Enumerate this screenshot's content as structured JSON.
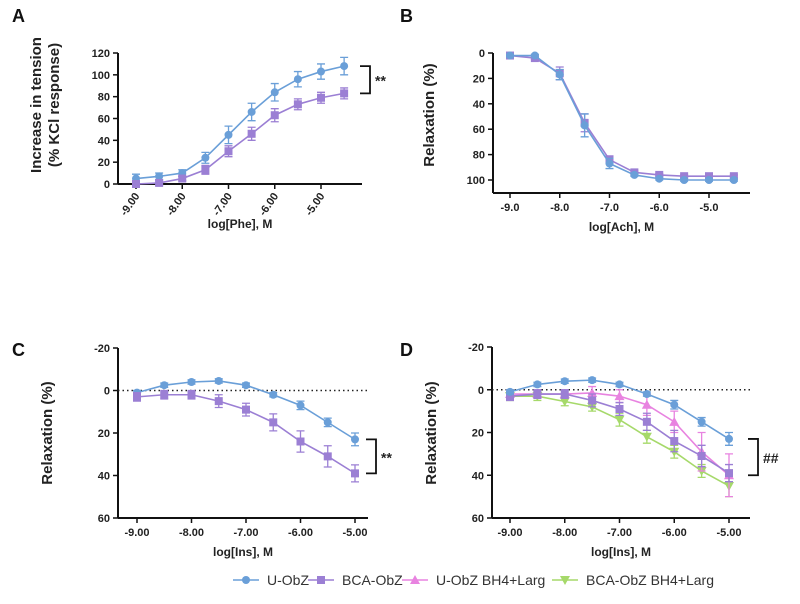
{
  "colors": {
    "U-ObZ": "#6a9fd8",
    "BCA-ObZ": "#9b7fd4",
    "U-ObZ  BH4+Larg": "#e883e0",
    "BCA-ObZ  BH4+Larg": "#a6d96a"
  },
  "legend": [
    {
      "name": "U-ObZ",
      "marker": "circle"
    },
    {
      "name": "BCA-ObZ",
      "marker": "square"
    },
    {
      "name": "U-ObZ  BH4+Larg",
      "marker": "triangle-up"
    },
    {
      "name": "BCA-ObZ  BH4+Larg",
      "marker": "triangle-down"
    }
  ],
  "chart_data": [
    {
      "panel": "A",
      "type": "line",
      "xlabel": "log[Phe], M",
      "ylabel": [
        "Increase in tension",
        "(% KCl response)"
      ],
      "ylim": [
        0,
        120
      ],
      "yticks": [
        0,
        20,
        40,
        60,
        80,
        100,
        120
      ],
      "xticks": [
        "-9.00",
        "-8.00",
        "-7.00",
        "-6.00",
        "-5.00"
      ],
      "xtick_values": [
        -9,
        -8,
        -7,
        -6,
        -5
      ],
      "x_tick_rotated": true,
      "y_inverted": false,
      "x": [
        -9,
        -8.5,
        -8,
        -7.5,
        -7,
        -6.5,
        -6,
        -5.5,
        -5,
        -4.5
      ],
      "series": [
        {
          "name": "U-ObZ",
          "values": [
            5,
            7,
            10,
            24,
            45,
            66,
            84,
            96,
            103,
            108
          ],
          "err": [
            4,
            3,
            3,
            5,
            8,
            8,
            8,
            7,
            7,
            8
          ]
        },
        {
          "name": "BCA-ObZ",
          "values": [
            0,
            1,
            5,
            13,
            30,
            46,
            63,
            73,
            79,
            83
          ],
          "err": [
            2,
            2,
            2,
            4,
            5,
            6,
            6,
            5,
            5,
            5
          ]
        }
      ],
      "significance": {
        "label": "**",
        "between": [
          108,
          83
        ]
      }
    },
    {
      "panel": "B",
      "type": "line",
      "xlabel": "log[Ach], M",
      "ylabel": [
        "Relaxation (%)"
      ],
      "ylim": [
        0,
        100
      ],
      "yticks": [
        0,
        20,
        40,
        60,
        80,
        100
      ],
      "xticks": [
        "-9.0",
        "-8.0",
        "-7.0",
        "-6.0",
        "-5.0"
      ],
      "xtick_values": [
        -9,
        -8,
        -7,
        -6,
        -5
      ],
      "x_tick_rotated": false,
      "y_inverted": true,
      "x": [
        -9,
        -8.5,
        -8,
        -7.5,
        -7,
        -6.5,
        -6,
        -5.5,
        -5,
        -4.5
      ],
      "series": [
        {
          "name": "BCA-ObZ",
          "values": [
            2,
            4,
            16,
            55,
            84,
            94,
            96,
            97,
            97,
            97
          ],
          "err": [
            1,
            1,
            5,
            7,
            3,
            1,
            1,
            1,
            1,
            1
          ]
        },
        {
          "name": "U-ObZ",
          "values": [
            2,
            2,
            17,
            57,
            87,
            96,
            99,
            100,
            100,
            100
          ],
          "err": [
            1,
            1,
            4,
            9,
            4,
            1,
            1,
            1,
            1,
            1
          ]
        }
      ]
    },
    {
      "panel": "C",
      "type": "line",
      "xlabel": "log[Ins], M",
      "ylabel": [
        "Relaxation (%)"
      ],
      "ylim": [
        -20,
        60
      ],
      "yticks": [
        -20,
        0,
        20,
        40,
        60
      ],
      "xticks": [
        "-9.00",
        "-8.00",
        "-7.00",
        "-6.00",
        "-5.00"
      ],
      "xtick_values": [
        -9,
        -8,
        -7,
        -6,
        -5
      ],
      "x_tick_rotated": false,
      "y_inverted": true,
      "zero_line": true,
      "x": [
        -9,
        -8.5,
        -8,
        -7.5,
        -7,
        -6.5,
        -6,
        -5.5,
        -5
      ],
      "series": [
        {
          "name": "U-ObZ",
          "values": [
            1,
            -2.5,
            -4,
            -4.5,
            -2.5,
            2,
            7,
            15,
            23
          ],
          "err": [
            1,
            1,
            1,
            1,
            1,
            1,
            2,
            2,
            3
          ]
        },
        {
          "name": "BCA-ObZ",
          "values": [
            3,
            2,
            2,
            5,
            9,
            15,
            24,
            31,
            39
          ],
          "err": [
            2,
            2,
            2,
            3,
            3,
            4,
            5,
            5,
            4
          ]
        }
      ],
      "significance": {
        "label": "**",
        "between": [
          23,
          39
        ]
      }
    },
    {
      "panel": "D",
      "type": "line",
      "xlabel": "log[Ins], M",
      "ylabel": [
        "Relaxation (%)"
      ],
      "ylim": [
        -20,
        60
      ],
      "yticks": [
        -20,
        0,
        20,
        40,
        60
      ],
      "xticks": [
        "-9.00",
        "-8.00",
        "-7.00",
        "-6.00",
        "-5.00"
      ],
      "xtick_values": [
        -9,
        -8,
        -7,
        -6,
        -5
      ],
      "x_tick_rotated": false,
      "y_inverted": true,
      "zero_line": true,
      "x": [
        -9,
        -8.5,
        -8,
        -7.5,
        -7,
        -6.5,
        -6,
        -5.5,
        -5
      ],
      "series": [
        {
          "name": "BCA-ObZ  BH4+Larg",
          "values": [
            3,
            3,
            5.5,
            8,
            14,
            22,
            29,
            38,
            45
          ],
          "err": [
            2,
            2,
            2,
            2,
            3,
            3,
            3,
            3,
            5
          ]
        },
        {
          "name": "U-ObZ  BH4+Larg",
          "values": [
            2,
            2,
            2,
            1.5,
            3,
            7,
            15,
            29,
            40
          ],
          "err": [
            2,
            2,
            2,
            3,
            3,
            5,
            5,
            9,
            10
          ]
        },
        {
          "name": "BCA-ObZ",
          "values": [
            3,
            2,
            2,
            5,
            9,
            15,
            24,
            31,
            39
          ],
          "err": [
            2,
            2,
            2,
            3,
            3,
            4,
            5,
            5,
            4
          ]
        },
        {
          "name": "U-ObZ",
          "values": [
            1,
            -2.5,
            -4,
            -4.5,
            -2.5,
            2,
            7,
            15,
            23
          ],
          "err": [
            1,
            1,
            1,
            1,
            1,
            1,
            2,
            2,
            3
          ]
        }
      ],
      "significance": {
        "label": "##",
        "between": [
          23,
          40
        ]
      }
    }
  ]
}
